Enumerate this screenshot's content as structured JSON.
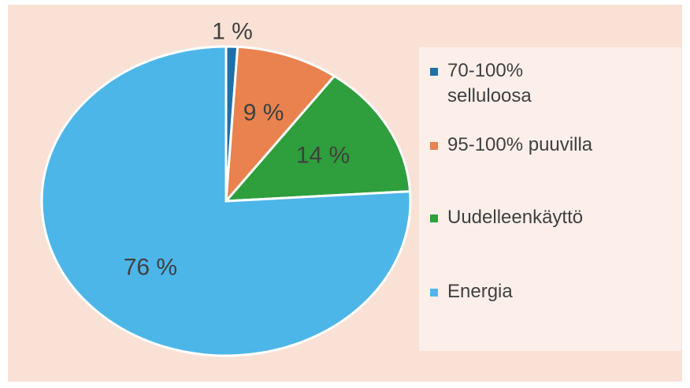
{
  "chart_data": {
    "type": "pie",
    "categories": [
      "70-100% selluloosa",
      "95-100% puuvilla",
      "Uudelleenkäyttö",
      "Energia"
    ],
    "values": [
      1,
      9,
      14,
      76
    ],
    "value_labels": [
      "1 %",
      "9 %",
      "14 %",
      "76 %"
    ],
    "colors": [
      "#1f6fa8",
      "#e9824e",
      "#2f9e3c",
      "#4db6e9"
    ],
    "legend": "right"
  }
}
